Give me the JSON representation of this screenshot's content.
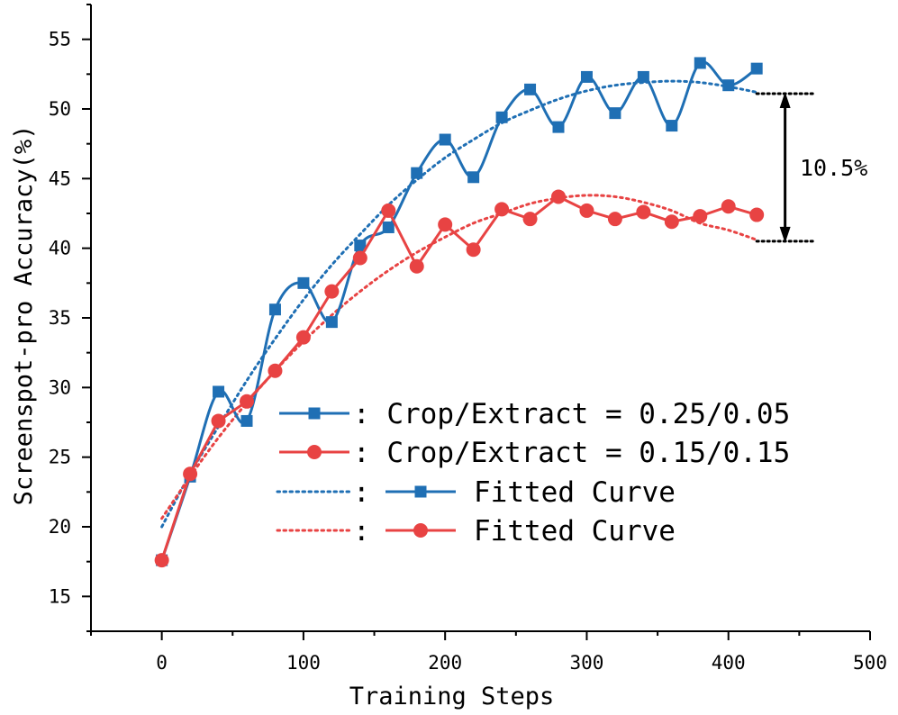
{
  "chart_data": {
    "type": "line",
    "xlabel": "Training Steps",
    "ylabel": "Screenspot-pro Accuracy(%)",
    "xlim": [
      -50,
      500
    ],
    "ylim": [
      12.5,
      57.5
    ],
    "xticks": [
      0,
      100,
      200,
      300,
      400,
      500
    ],
    "yticks": [
      15,
      20,
      25,
      30,
      35,
      40,
      45,
      50,
      55
    ],
    "grid": false,
    "legend_position": "lower-right",
    "x": [
      0,
      20,
      40,
      60,
      80,
      100,
      120,
      140,
      160,
      180,
      200,
      220,
      240,
      260,
      280,
      300,
      320,
      340,
      360,
      380,
      400,
      420
    ],
    "series": [
      {
        "name": ": Crop/Extract = 0.25/0.05",
        "color": "#1f6fb4",
        "marker": "square",
        "values": [
          17.6,
          23.6,
          29.7,
          27.6,
          35.6,
          37.5,
          34.7,
          40.2,
          41.5,
          45.4,
          47.8,
          45.1,
          49.4,
          51.4,
          48.7,
          52.3,
          49.7,
          52.3,
          48.8,
          53.3,
          51.7,
          52.9
        ]
      },
      {
        "name": ": Crop/Extract = 0.15/0.15",
        "color": "#e84343",
        "marker": "circle",
        "values": [
          17.6,
          23.8,
          27.6,
          29.0,
          31.2,
          33.6,
          36.9,
          39.3,
          42.7,
          38.7,
          41.7,
          39.9,
          42.8,
          42.1,
          43.7,
          42.7,
          42.1,
          42.6,
          41.9,
          42.3,
          43.0,
          42.4
        ]
      }
    ],
    "fitted_curves": [
      {
        "name": ": Fitted Curve",
        "color": "#1f6fb4",
        "style": "dotted",
        "x": [
          0,
          20,
          40,
          60,
          80,
          100,
          120,
          140,
          160,
          180,
          200,
          220,
          240,
          260,
          280,
          300,
          320,
          340,
          360,
          380,
          400,
          420
        ],
        "values": [
          20.0,
          23.8,
          27.2,
          30.5,
          33.5,
          36.3,
          38.8,
          41.0,
          43.1,
          44.9,
          46.5,
          47.8,
          49.0,
          49.9,
          50.7,
          51.3,
          51.7,
          51.9,
          52.0,
          51.9,
          51.6,
          51.2
        ]
      },
      {
        "name": ": Fitted Curve",
        "color": "#e84343",
        "style": "dotted",
        "x": [
          0,
          20,
          40,
          60,
          80,
          100,
          120,
          140,
          160,
          180,
          200,
          220,
          240,
          260,
          280,
          300,
          320,
          340,
          360,
          380,
          400,
          420
        ],
        "values": [
          20.6,
          23.6,
          26.4,
          28.9,
          31.2,
          33.3,
          35.2,
          36.9,
          38.4,
          39.7,
          40.8,
          41.8,
          42.5,
          43.2,
          43.6,
          43.8,
          43.7,
          43.3,
          42.7,
          41.8,
          41.3,
          40.6
        ]
      }
    ],
    "annotation": {
      "text": "10.5%",
      "upper_y": 51.1,
      "lower_y": 40.5,
      "x_start": 420,
      "x_end": 460,
      "arrow_x": 440
    }
  }
}
